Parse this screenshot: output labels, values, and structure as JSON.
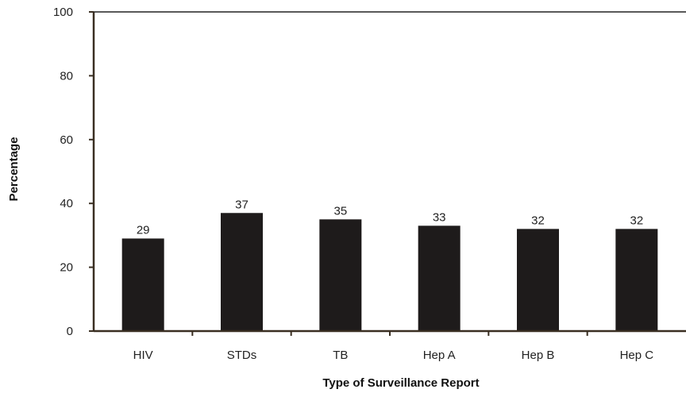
{
  "chart_data": {
    "type": "bar",
    "categories": [
      "HIV",
      "STDs",
      "TB",
      "Hep A",
      "Hep B",
      "Hep C"
    ],
    "values": [
      29,
      37,
      35,
      33,
      32,
      32
    ],
    "value_labels": [
      "29",
      "37",
      "35",
      "33",
      "32",
      "32"
    ],
    "xlabel": "Type of Surveillance Report",
    "ylabel": "Percentage",
    "ylim": [
      0,
      100
    ],
    "yticks": [
      0,
      20,
      40,
      60,
      80,
      100
    ],
    "ytick_labels": [
      "0",
      "20",
      "40",
      "60",
      "80",
      "100"
    ],
    "grid": false,
    "bar_color": "#1e1b1b",
    "axis_color": "#3a2f22"
  }
}
